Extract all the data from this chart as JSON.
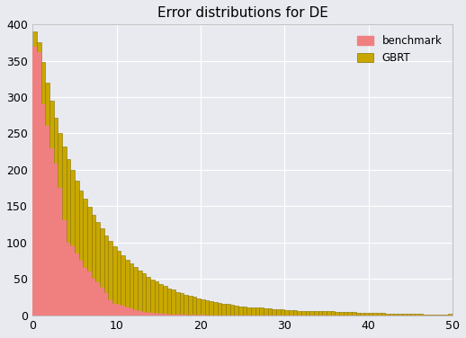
{
  "title": "Error distributions for DE",
  "background_color": "#e8eaf0",
  "benchmark_color": "#f08080",
  "gbrt_color": "#c8a800",
  "gbrt_face_color": "#c8a800",
  "xlim": [
    0,
    50
  ],
  "ylim": [
    0,
    400
  ],
  "xticks": [
    0,
    10,
    20,
    30,
    40,
    50
  ],
  "yticks": [
    0,
    50,
    100,
    150,
    200,
    250,
    300,
    350,
    400
  ],
  "legend_labels": [
    "benchmark",
    "GBRT"
  ],
  "n_bins": 100,
  "gbrt_counts": [
    390,
    375,
    348,
    320,
    295,
    272,
    250,
    232,
    215,
    200,
    185,
    172,
    160,
    149,
    138,
    128,
    119,
    110,
    102,
    95,
    88,
    82,
    76,
    71,
    66,
    61,
    57,
    53,
    49,
    46,
    43,
    40,
    37,
    35,
    32,
    30,
    28,
    26,
    25,
    23,
    22,
    20,
    19,
    18,
    17,
    16,
    15,
    14,
    13,
    12,
    12,
    11,
    11,
    10,
    10,
    9,
    9,
    8,
    8,
    8,
    7,
    7,
    7,
    6,
    6,
    6,
    6,
    5,
    5,
    5,
    5,
    5,
    4,
    4,
    4,
    4,
    4,
    3,
    3,
    3,
    3,
    3,
    3,
    3,
    2,
    2,
    2,
    2,
    2,
    2,
    2,
    2,
    2,
    1,
    1,
    1,
    1,
    1,
    1,
    2
  ],
  "benchmark_counts": [
    370,
    362,
    290,
    260,
    230,
    208,
    175,
    130,
    100,
    95,
    85,
    75,
    65,
    60,
    50,
    45,
    38,
    30,
    20,
    15,
    14,
    13,
    11,
    9,
    7,
    5,
    4,
    3,
    3,
    2,
    2,
    2,
    1,
    1,
    1,
    1,
    1,
    0,
    1,
    0,
    1,
    0,
    0,
    0,
    0,
    0,
    0,
    0,
    0,
    0,
    0,
    0,
    0,
    0,
    0,
    0,
    0,
    0,
    0,
    0,
    0,
    0,
    0,
    0,
    0,
    0,
    0,
    0,
    0,
    0,
    0,
    0,
    0,
    0,
    0,
    0,
    0,
    0,
    0,
    0,
    0,
    0,
    0,
    0,
    0,
    0,
    0,
    0,
    0,
    0,
    0,
    0,
    0,
    0,
    0,
    0,
    0,
    0,
    0,
    0
  ]
}
